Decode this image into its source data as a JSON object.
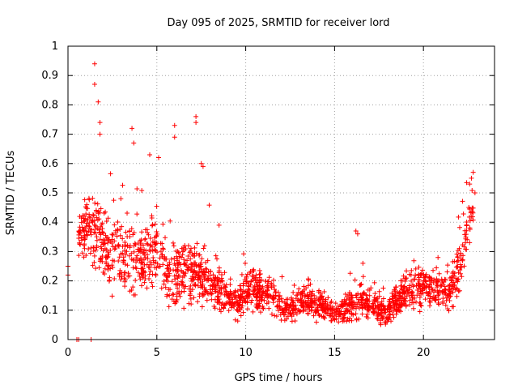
{
  "chart_data": {
    "type": "scatter",
    "title": "Day 095 of 2025, SRMTID for receiver lord",
    "xlabel": "GPS time / hours",
    "ylabel": "SRMTID / TECUs",
    "xlim": [
      0,
      24
    ],
    "ylim": [
      0,
      1
    ],
    "xticks": [
      0,
      5,
      10,
      15,
      20
    ],
    "xtick_labels": [
      "0",
      "5",
      "10",
      "15",
      "20"
    ],
    "yticks": [
      0,
      0.1,
      0.2,
      0.3,
      0.4,
      0.5,
      0.6,
      0.7,
      0.8,
      0.9,
      1
    ],
    "ytick_labels": [
      "0",
      "0.1",
      "0.2",
      "0.3",
      "0.4",
      "0.5",
      "0.6",
      "0.7",
      "0.8",
      "0.9",
      "1"
    ],
    "grid": true,
    "marker": "+",
    "color": "#ff0000",
    "envelope": {
      "x": [
        0.0,
        0.6,
        0.8,
        1.0,
        1.2,
        1.5,
        1.8,
        2.2,
        2.6,
        3.0,
        3.5,
        4.0,
        4.5,
        5.0,
        5.3,
        5.6,
        6.0,
        6.5,
        7.0,
        7.5,
        8.0,
        8.5,
        9.0,
        9.5,
        10.0,
        10.5,
        11.0,
        11.5,
        12.0,
        12.5,
        13.0,
        13.5,
        14.0,
        14.5,
        15.0,
        15.5,
        16.0,
        16.5,
        17.0,
        17.5,
        18.0,
        18.5,
        19.0,
        19.5,
        20.0,
        20.5,
        21.0,
        21.5,
        22.0,
        22.5,
        22.7
      ],
      "center": [
        0.24,
        0.34,
        0.36,
        0.38,
        0.37,
        0.35,
        0.33,
        0.31,
        0.3,
        0.29,
        0.28,
        0.27,
        0.27,
        0.3,
        0.28,
        0.2,
        0.22,
        0.24,
        0.22,
        0.22,
        0.19,
        0.17,
        0.14,
        0.13,
        0.16,
        0.17,
        0.16,
        0.15,
        0.1,
        0.11,
        0.14,
        0.13,
        0.12,
        0.11,
        0.09,
        0.1,
        0.12,
        0.13,
        0.12,
        0.1,
        0.09,
        0.13,
        0.17,
        0.18,
        0.18,
        0.17,
        0.17,
        0.16,
        0.24,
        0.35,
        0.42
      ],
      "spread": [
        0.03,
        0.07,
        0.09,
        0.1,
        0.12,
        0.13,
        0.12,
        0.11,
        0.11,
        0.1,
        0.11,
        0.1,
        0.1,
        0.13,
        0.1,
        0.08,
        0.09,
        0.1,
        0.09,
        0.09,
        0.07,
        0.06,
        0.05,
        0.05,
        0.06,
        0.06,
        0.06,
        0.06,
        0.04,
        0.04,
        0.05,
        0.05,
        0.05,
        0.04,
        0.03,
        0.04,
        0.05,
        0.05,
        0.05,
        0.04,
        0.04,
        0.05,
        0.06,
        0.06,
        0.06,
        0.06,
        0.06,
        0.06,
        0.07,
        0.08,
        0.08
      ]
    },
    "notable_points": [
      {
        "x": 1.5,
        "y": 0.94
      },
      {
        "x": 1.5,
        "y": 0.87
      },
      {
        "x": 1.7,
        "y": 0.81
      },
      {
        "x": 1.8,
        "y": 0.74
      },
      {
        "x": 1.8,
        "y": 0.7
      },
      {
        "x": 3.6,
        "y": 0.72
      },
      {
        "x": 3.7,
        "y": 0.67
      },
      {
        "x": 4.6,
        "y": 0.63
      },
      {
        "x": 5.1,
        "y": 0.62
      },
      {
        "x": 6.0,
        "y": 0.73
      },
      {
        "x": 6.0,
        "y": 0.69
      },
      {
        "x": 7.2,
        "y": 0.76
      },
      {
        "x": 7.2,
        "y": 0.74
      },
      {
        "x": 7.5,
        "y": 0.6
      },
      {
        "x": 7.6,
        "y": 0.59
      },
      {
        "x": 8.5,
        "y": 0.39
      },
      {
        "x": 16.2,
        "y": 0.37
      },
      {
        "x": 16.3,
        "y": 0.36
      },
      {
        "x": 22.8,
        "y": 0.57
      },
      {
        "x": 22.7,
        "y": 0.55
      },
      {
        "x": 22.6,
        "y": 0.53
      },
      {
        "x": 22.9,
        "y": 0.5
      },
      {
        "x": 0.0,
        "y": 0.25
      },
      {
        "x": 0.0,
        "y": 0.22
      },
      {
        "x": 0.5,
        "y": 0.0
      },
      {
        "x": 0.6,
        "y": 0.0
      },
      {
        "x": 1.3,
        "y": 0.0
      }
    ]
  }
}
